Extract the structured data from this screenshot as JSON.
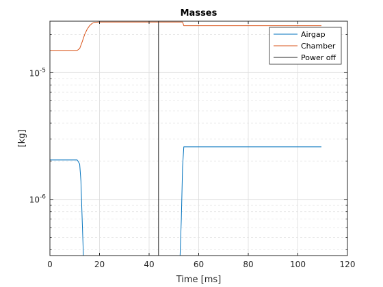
{
  "chart_data": {
    "type": "line",
    "title": "Masses",
    "xlabel": "Time [ms]",
    "ylabel": "[kg]",
    "xlim": [
      0,
      120
    ],
    "ylim": [
      3.6e-07,
      2.55e-05
    ],
    "yscale": "log",
    "grid": true,
    "legend_location": "top-right",
    "x_ticks": [
      "0",
      "20",
      "40",
      "60",
      "80",
      "100",
      "120"
    ],
    "y_ticks": [
      {
        "mantissa": "10",
        "exponent": "-6"
      },
      {
        "mantissa": "10",
        "exponent": "-5"
      }
    ],
    "series": [
      {
        "name": "Airgap",
        "color": "#0072BD",
        "x": [
          0,
          11.0,
          12.0,
          12.5,
          13.0,
          13.5,
          14.0,
          52.5,
          53.0,
          53.5,
          54.0,
          109.5
        ],
        "y": [
          2.05e-06,
          2.05e-06,
          1.9e-06,
          1.4e-06,
          7e-07,
          3.6e-07,
          3.6e-07,
          3.6e-07,
          7e-07,
          1.8e-06,
          2.6e-06,
          2.6e-06
        ]
      },
      {
        "name": "Chamber",
        "color": "#D95319",
        "x": [
          0,
          11.0,
          12.0,
          13.0,
          14.0,
          15.0,
          16.0,
          17.0,
          18.0,
          20.0,
          53.5,
          54.0,
          109.5
        ],
        "y": [
          1.5e-05,
          1.5e-05,
          1.55e-05,
          1.75e-05,
          2e-05,
          2.2e-05,
          2.35e-05,
          2.45e-05,
          2.5e-05,
          2.51e-05,
          2.51e-05,
          2.35e-05,
          2.35e-05
        ]
      },
      {
        "name": "Power off",
        "color": "#262626",
        "x": [
          43.8,
          43.8
        ],
        "y": [
          3.6e-07,
          2.55e-05
        ]
      }
    ]
  }
}
